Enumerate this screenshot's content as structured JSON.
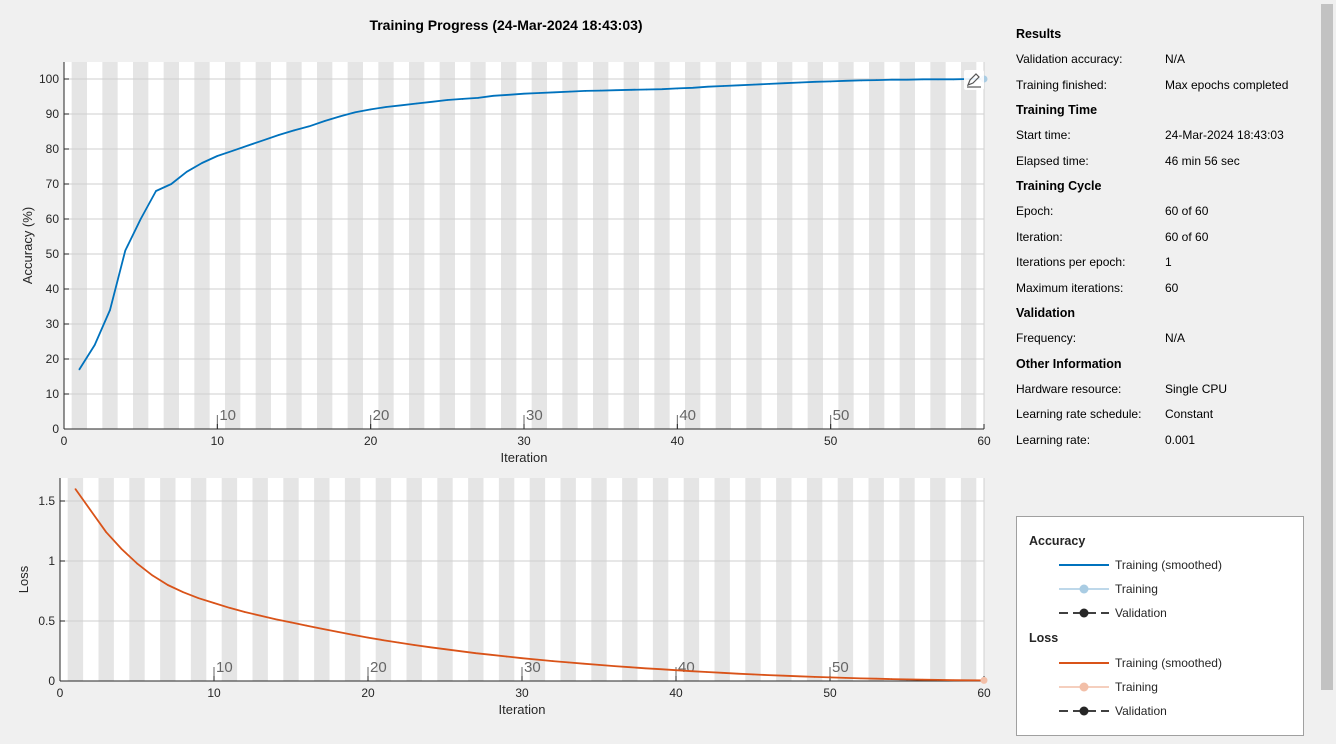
{
  "title": "Training Progress (24-Mar-2024 18:43:03)",
  "results": {
    "sections": [
      {
        "title": "Results",
        "rows": [
          {
            "label": "Validation accuracy:",
            "value": "N/A"
          },
          {
            "label": "Training finished:",
            "value": "Max epochs completed"
          }
        ]
      },
      {
        "title": "Training Time",
        "rows": [
          {
            "label": "Start time:",
            "value": "24-Mar-2024 18:43:03"
          },
          {
            "label": "Elapsed time:",
            "value": "46 min 56 sec"
          }
        ]
      },
      {
        "title": "Training Cycle",
        "rows": [
          {
            "label": "Epoch:",
            "value": "60 of 60"
          },
          {
            "label": "Iteration:",
            "value": "60 of 60"
          },
          {
            "label": "Iterations per epoch:",
            "value": "1"
          },
          {
            "label": "Maximum iterations:",
            "value": "60"
          }
        ]
      },
      {
        "title": "Validation",
        "rows": [
          {
            "label": "Frequency:",
            "value": "N/A"
          }
        ]
      },
      {
        "title": "Other Information",
        "rows": [
          {
            "label": "Hardware resource:",
            "value": "Single CPU"
          },
          {
            "label": "Learning rate schedule:",
            "value": "Constant"
          },
          {
            "label": "Learning rate:",
            "value": "0.001"
          }
        ]
      }
    ]
  },
  "legend": {
    "accuracy_title": "Accuracy",
    "loss_title": "Loss",
    "accuracy_items": [
      "Training (smoothed)",
      "Training",
      "Validation"
    ],
    "loss_items": [
      "Training (smoothed)",
      "Training",
      "Validation"
    ]
  },
  "colors": {
    "accuracy": "#0072bd",
    "accuracy_raw": "#a9cce3",
    "loss": "#d95319",
    "loss_raw": "#f2bfa8",
    "validation": "#262626",
    "stripe": "#e5e5e5"
  },
  "icons": {
    "export": "export-icon"
  },
  "chart_data": [
    {
      "type": "line",
      "xlabel": "Iteration",
      "ylabel": "Accuracy (%)",
      "xlim": [
        0,
        60
      ],
      "ylim": [
        0,
        105
      ],
      "xticks": [
        0,
        10,
        20,
        30,
        40,
        50,
        60
      ],
      "yticks": [
        0,
        10,
        20,
        30,
        40,
        50,
        60,
        70,
        80,
        90,
        100
      ],
      "ytick_labels": [
        "0",
        "10",
        "20",
        "30",
        "40",
        "50",
        "60",
        "70",
        "80",
        "90",
        "100"
      ],
      "epoch_labels": [
        10,
        20,
        30,
        40,
        50
      ],
      "grid": true,
      "series": [
        {
          "name": "Training (smoothed)",
          "x": [
            1,
            2,
            3,
            4,
            5,
            6,
            7,
            8,
            9,
            10,
            11,
            12,
            13,
            14,
            15,
            16,
            17,
            18,
            19,
            20,
            21,
            22,
            23,
            24,
            25,
            26,
            27,
            28,
            29,
            30,
            31,
            32,
            33,
            34,
            35,
            36,
            37,
            38,
            39,
            40,
            41,
            42,
            43,
            44,
            45,
            46,
            47,
            48,
            49,
            50,
            51,
            52,
            53,
            54,
            55,
            56,
            57,
            58,
            59,
            60
          ],
          "values": [
            17,
            24,
            34,
            51,
            60,
            68,
            70,
            73.5,
            76,
            78,
            79.5,
            81,
            82.5,
            84,
            85.3,
            86.5,
            88,
            89.3,
            90.5,
            91.3,
            92,
            92.5,
            93,
            93.5,
            94,
            94.3,
            94.6,
            95.2,
            95.5,
            95.8,
            96,
            96.2,
            96.4,
            96.6,
            96.7,
            96.8,
            96.9,
            97,
            97.1,
            97.3,
            97.5,
            97.8,
            98,
            98.2,
            98.4,
            98.6,
            98.8,
            99,
            99.2,
            99.3,
            99.5,
            99.6,
            99.7,
            99.8,
            99.8,
            99.9,
            99.9,
            99.9,
            100,
            100
          ]
        }
      ]
    },
    {
      "type": "line",
      "xlabel": "Iteration",
      "ylabel": "Loss",
      "xlim": [
        0,
        60
      ],
      "ylim": [
        0,
        1.6
      ],
      "xticks": [
        0,
        10,
        20,
        30,
        40,
        50,
        60
      ],
      "yticks": [
        0,
        0.5,
        1,
        1.5
      ],
      "ytick_labels": [
        "0",
        "0.5",
        "1",
        "1.5"
      ],
      "epoch_labels": [
        10,
        20,
        30,
        40,
        50
      ],
      "grid": true,
      "series": [
        {
          "name": "Training (smoothed)",
          "x": [
            1,
            2,
            3,
            4,
            5,
            6,
            7,
            8,
            9,
            10,
            11,
            12,
            13,
            14,
            15,
            16,
            17,
            18,
            19,
            20,
            21,
            22,
            23,
            24,
            25,
            26,
            27,
            28,
            29,
            30,
            31,
            32,
            33,
            34,
            35,
            36,
            37,
            38,
            39,
            40,
            41,
            42,
            43,
            44,
            45,
            46,
            47,
            48,
            49,
            50,
            51,
            52,
            53,
            54,
            55,
            56,
            57,
            58,
            59,
            60
          ],
          "values": [
            1.6,
            1.42,
            1.24,
            1.1,
            0.98,
            0.88,
            0.8,
            0.74,
            0.69,
            0.65,
            0.61,
            0.575,
            0.545,
            0.515,
            0.488,
            0.462,
            0.436,
            0.41,
            0.385,
            0.362,
            0.34,
            0.32,
            0.3,
            0.282,
            0.265,
            0.248,
            0.232,
            0.218,
            0.204,
            0.19,
            0.178,
            0.166,
            0.155,
            0.144,
            0.134,
            0.124,
            0.115,
            0.106,
            0.098,
            0.09,
            0.082,
            0.075,
            0.068,
            0.061,
            0.055,
            0.049,
            0.044,
            0.039,
            0.034,
            0.03,
            0.026,
            0.022,
            0.019,
            0.016,
            0.013,
            0.011,
            0.009,
            0.007,
            0.006,
            0.005
          ]
        }
      ]
    }
  ]
}
